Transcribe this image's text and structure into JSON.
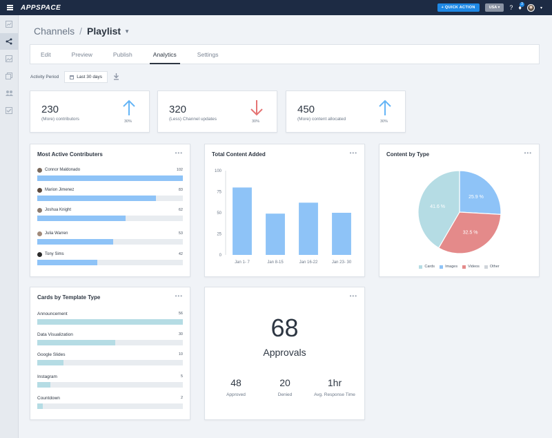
{
  "topbar": {
    "logo": "APPSPACE",
    "quick_action": "+ QUICK ACTION",
    "region": "USA ▾",
    "help_icon": "?",
    "notification_badge": "3"
  },
  "sidebar": {
    "items": [
      {
        "icon": "dashboard-icon",
        "active": false
      },
      {
        "icon": "channels-icon",
        "active": true
      },
      {
        "icon": "library-icon",
        "active": false
      },
      {
        "icon": "devices-icon",
        "active": false
      },
      {
        "icon": "users-icon",
        "active": false
      },
      {
        "icon": "tasks-icon",
        "active": false
      }
    ]
  },
  "breadcrumb": {
    "parent": "Channels",
    "separator": "/",
    "current": "Playlist"
  },
  "tabs": [
    {
      "label": "Edit",
      "active": false
    },
    {
      "label": "Preview",
      "active": false
    },
    {
      "label": "Publish",
      "active": false
    },
    {
      "label": "Analytics",
      "active": true
    },
    {
      "label": "Settings",
      "active": false
    }
  ],
  "activity": {
    "label": "Activity Period",
    "value": "Last 30 days"
  },
  "stats": [
    {
      "value": "230",
      "label": "(More) contributors",
      "pct": "30%",
      "direction": "up",
      "color": "#64b5f6"
    },
    {
      "value": "320",
      "label": "(Less) Channel updates",
      "pct": "30%",
      "direction": "down",
      "color": "#e57373"
    },
    {
      "value": "450",
      "label": "(More) content allocated",
      "pct": "30%",
      "direction": "up",
      "color": "#64b5f6"
    }
  ],
  "contributors": {
    "title": "Most Active Contributers",
    "max": 102,
    "color": "#8ec3f7",
    "rows": [
      {
        "name": "Connor Maldonado",
        "value": 102,
        "label": "102"
      },
      {
        "name": "Marion Jimenez",
        "value": 83,
        "label": "83"
      },
      {
        "name": "Joshua Knight",
        "value": 62,
        "label": "62"
      },
      {
        "name": "Julia Warren",
        "value": 53,
        "label": "53"
      },
      {
        "name": "Tony Sims",
        "value": 42,
        "label": "42"
      }
    ]
  },
  "content_added": {
    "title": "Total Content Added"
  },
  "content_type": {
    "title": "Content by Type"
  },
  "templates": {
    "title": "Cards by Template Type",
    "max": 56,
    "color": "#b5dce4",
    "rows": [
      {
        "name": "Announcement",
        "value": 56,
        "label": "56"
      },
      {
        "name": "Data Visualization",
        "value": 30,
        "label": "30"
      },
      {
        "name": "Google Slides",
        "value": 10,
        "label": "10"
      },
      {
        "name": "Instagram",
        "value": 5,
        "label": "5"
      },
      {
        "name": "Countdown",
        "value": 2,
        "label": "2"
      }
    ]
  },
  "approvals": {
    "value": "68",
    "label": "Approvals",
    "approved_value": "48",
    "approved_label": "Approved",
    "denied_value": "20",
    "denied_label": "Denied",
    "response_value": "1hr",
    "response_label": "Avg. Response Time"
  },
  "menu_dots": "•••",
  "chart_data": [
    {
      "type": "bar",
      "title": "Total Content Added",
      "categories": [
        "Jan 1- 7",
        "Jan 8-15",
        "Jan 16-22",
        "Jan 23- 30"
      ],
      "values": [
        80,
        49,
        62,
        50
      ],
      "ylim": [
        0,
        100
      ],
      "yticks": [
        0,
        25,
        50,
        75,
        100
      ],
      "color": "#8ec3f7"
    },
    {
      "type": "pie",
      "title": "Content by Type",
      "labels": [
        "Cards",
        "Images",
        "Videos",
        "Other"
      ],
      "values": [
        41.6,
        25.9,
        32.5,
        0
      ],
      "slice_labels": [
        "41.6 %",
        "25.9 %",
        "32.5 %",
        ""
      ],
      "colors": [
        "#b5dce4",
        "#8ec3f7",
        "#e48a8a",
        "#cfd4da"
      ],
      "legend": "bottom"
    }
  ]
}
